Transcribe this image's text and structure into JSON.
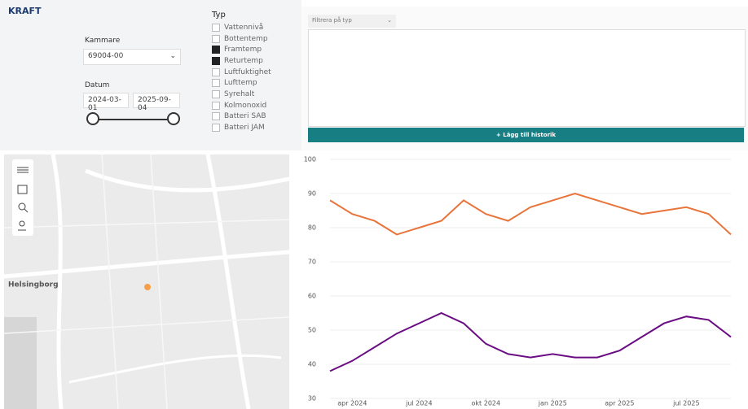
{
  "header": {
    "logo": "KRAFT"
  },
  "filters": {
    "kammare_label": "Kammare",
    "kammare_value": "69004-00",
    "datum_label": "Datum",
    "date_from": "2024-03-01",
    "date_to": "2025-09-04",
    "typ_label": "Typ",
    "typ_items": [
      {
        "label": "Vattennivå",
        "checked": false
      },
      {
        "label": "Bottentemp",
        "checked": false
      },
      {
        "label": "Framtemp",
        "checked": true
      },
      {
        "label": "Returtemp",
        "checked": true
      },
      {
        "label": "Luftfuktighet",
        "checked": false
      },
      {
        "label": "Lufttemp",
        "checked": false
      },
      {
        "label": "Syrehalt",
        "checked": false
      },
      {
        "label": "Kolmonoxid",
        "checked": false
      },
      {
        "label": "Batteri SAB",
        "checked": false
      },
      {
        "label": "Batteri JAM",
        "checked": false
      }
    ]
  },
  "history": {
    "filter_placeholder": "Filtrera på typ",
    "button": "Lägg till historik"
  },
  "map": {
    "place_label": "Helsingborg"
  },
  "chart_data": {
    "type": "line",
    "x": [
      "2024-03",
      "2024-04",
      "2024-05",
      "2024-06",
      "2024-07",
      "2024-08",
      "2024-09",
      "2024-10",
      "2024-11",
      "2024-12",
      "2025-01",
      "2025-02",
      "2025-03",
      "2025-04",
      "2025-05",
      "2025-06",
      "2025-07",
      "2025-08",
      "2025-09"
    ],
    "series": [
      {
        "name": "Framtemp",
        "color": "#e8743b",
        "values": [
          88,
          84,
          82,
          78,
          80,
          82,
          88,
          84,
          82,
          86,
          88,
          90,
          88,
          86,
          84,
          85,
          86,
          84,
          78
        ]
      },
      {
        "name": "Returtemp",
        "color": "#6a0d83",
        "values": [
          38,
          41,
          45,
          49,
          52,
          55,
          52,
          46,
          43,
          42,
          43,
          42,
          42,
          44,
          48,
          52,
          54,
          53,
          48
        ]
      }
    ],
    "xlim": [
      "2024-03",
      "2025-09"
    ],
    "xticks": [
      {
        "value": "2024-04",
        "label": "apr 2024"
      },
      {
        "value": "2024-07",
        "label": "jul 2024"
      },
      {
        "value": "2024-10",
        "label": "okt 2024"
      },
      {
        "value": "2025-01",
        "label": "jan 2025"
      },
      {
        "value": "2025-04",
        "label": "apr 2025"
      },
      {
        "value": "2025-07",
        "label": "jul 2025"
      }
    ],
    "ylim": [
      30,
      100
    ],
    "yticks": [
      30,
      40,
      50,
      60,
      70,
      80,
      90,
      100
    ],
    "grid": true
  }
}
